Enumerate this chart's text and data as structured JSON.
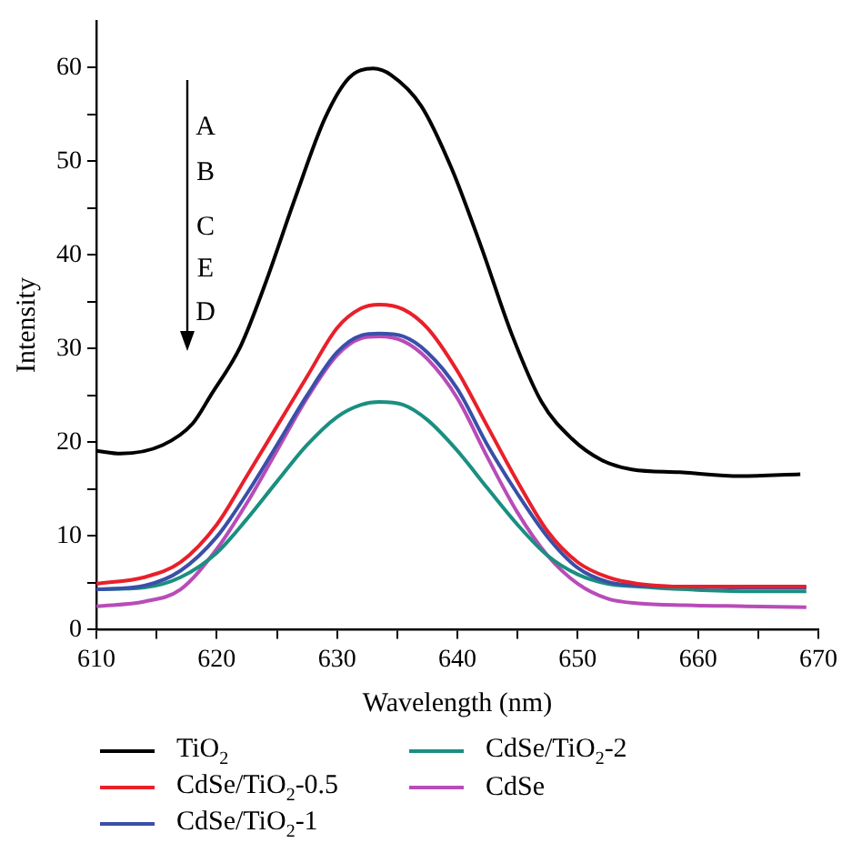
{
  "chart_data": {
    "type": "line",
    "xlabel": "Wavelength (nm)",
    "ylabel": "Intensity",
    "annotations": [
      "A",
      "B",
      "C",
      "E",
      "D"
    ],
    "xlim": [
      610,
      670
    ],
    "xticks": [
      610,
      {
        "value": 615,
        "label": null
      },
      620,
      {
        "value": 625,
        "label": null
      },
      630,
      {
        "value": 635,
        "label": null
      },
      640,
      {
        "value": 645,
        "label": null
      },
      650,
      {
        "value": 655,
        "label": null
      },
      660,
      {
        "value": 665,
        "label": null
      },
      670
    ],
    "ylim": [
      0,
      65
    ],
    "yticks": [
      0,
      {
        "value": 5,
        "label": null
      },
      10,
      {
        "value": 15,
        "label": null
      },
      20,
      {
        "value": 25,
        "label": null
      },
      30,
      {
        "value": 35,
        "label": null
      },
      40,
      {
        "value": 45,
        "label": null
      },
      50,
      {
        "value": 55,
        "label": null
      },
      60
    ],
    "grid": false,
    "legend": "bottom",
    "marker": "none",
    "line_style": "solid",
    "x": [
      610,
      612,
      615.5,
      618,
      619.5,
      622,
      624,
      626.5,
      629,
      631,
      633,
      634.5,
      637,
      639.5,
      642,
      644.5,
      647,
      649.5,
      652,
      654.5,
      658.5,
      663.5,
      668.5
    ],
    "series": [
      {
        "name": "TiO$_{2}$",
        "color": "#000000",
        "values": [
          19.1,
          18.8,
          19.7,
          22,
          25,
          30.3,
          36.8,
          46,
          54.6,
          58.9,
          59.9,
          59.2,
          55.9,
          49.3,
          40.8,
          31.6,
          24.3,
          20.4,
          18.1,
          17.1,
          16.8,
          16.4,
          16.6
        ]
      },
      {
        "name": "CdSe/TiO$_{2}$-0.5",
        "color": "#e8202a",
        "x": [
          610,
          614,
          617,
          620,
          622.5,
          625,
          627.5,
          630,
          632,
          633.5,
          635.5,
          637.5,
          640,
          642.5,
          645,
          647.5,
          650,
          652.5,
          655,
          659,
          664,
          669
        ],
        "values": [
          4.9,
          5.6,
          7.2,
          11.2,
          16.4,
          21.7,
          27,
          32.2,
          34.3,
          34.7,
          34.2,
          32.2,
          27.6,
          21.7,
          15.8,
          10.5,
          7.2,
          5.6,
          4.9,
          4.6,
          4.6,
          4.6
        ]
      },
      {
        "name": "CdSe/TiO$_{2}$-1",
        "color": "#3a4fa8",
        "x": [
          610,
          614,
          617,
          620,
          622.5,
          625,
          627.5,
          630,
          632,
          633.5,
          635.5,
          637.5,
          640,
          642.5,
          645,
          647.5,
          650,
          652.5,
          655,
          659,
          664,
          669
        ],
        "values": [
          4.3,
          4.7,
          6.3,
          9.9,
          14.5,
          19.7,
          25,
          29.6,
          31.4,
          31.6,
          31.3,
          29.6,
          25.7,
          19.7,
          14.5,
          9.9,
          6.6,
          5.1,
          4.7,
          4.6,
          4.5,
          4.5
        ]
      },
      {
        "name": "CdSe/TiO$_{2}$-2",
        "color": "#1a8f80",
        "x": [
          610,
          614,
          617,
          620,
          622.5,
          625,
          627.5,
          630,
          632,
          633.5,
          635.5,
          637.5,
          640,
          642.5,
          645,
          647.5,
          650,
          652.5,
          655,
          659,
          664,
          669
        ],
        "values": [
          4.3,
          4.5,
          5.6,
          8.2,
          11.8,
          15.8,
          19.7,
          22.7,
          24,
          24.3,
          24,
          22.4,
          19.1,
          15.1,
          11.2,
          7.9,
          5.9,
          4.9,
          4.6,
          4.3,
          4.1,
          4.1
        ]
      },
      {
        "name": "CdSe",
        "color": "#b84cb8",
        "x": [
          610,
          614,
          617,
          620,
          622.5,
          625,
          627.5,
          630,
          632,
          633.5,
          635.5,
          637.5,
          640,
          642.5,
          645,
          647.5,
          650,
          652.5,
          655,
          659,
          664,
          669
        ],
        "values": [
          2.5,
          3,
          4.3,
          8.6,
          13.5,
          19.1,
          24.7,
          29.3,
          31.1,
          31.3,
          30.8,
          28.9,
          24.7,
          18.4,
          12.5,
          7.9,
          4.9,
          3.3,
          2.8,
          2.6,
          2.5,
          2.4
        ]
      }
    ]
  }
}
